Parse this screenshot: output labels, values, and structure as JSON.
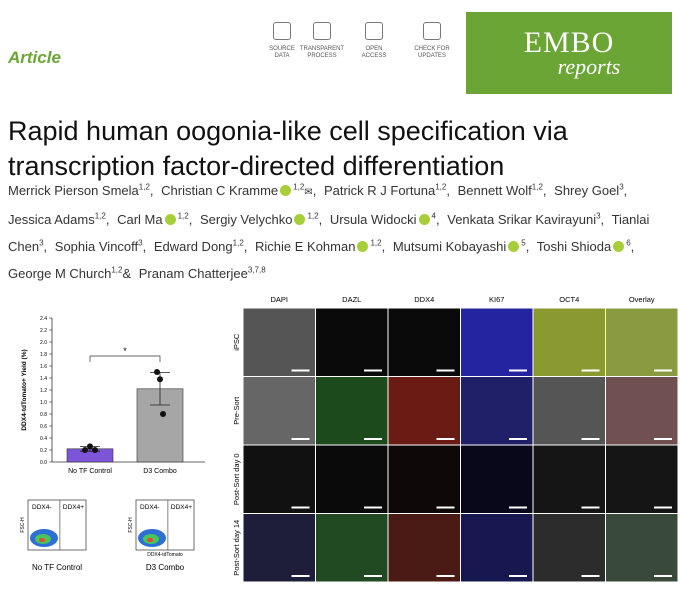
{
  "header": {
    "article_label": "Article",
    "badges": [
      [
        "SOURCE",
        "DATA"
      ],
      [
        "TRANSPARENT",
        "PROCESS"
      ],
      [
        "OPEN",
        "ACCESS"
      ],
      [
        "CHECK FOR",
        "UPDATES"
      ]
    ],
    "logo": {
      "main": "EMBO",
      "sub": "reports"
    }
  },
  "title": "Rapid human oogonia-like cell specification via transcription factor-directed differentiation",
  "authors": [
    {
      "name": "Merrick Pierson Smela",
      "sup": "1,2",
      "after": ","
    },
    {
      "name": "Christian C Kramme",
      "orcid": true,
      "sup": "1,2",
      "corresponding": true,
      "after": ","
    },
    {
      "name": "Patrick R J Fortuna",
      "sup": "1,2",
      "after": ","
    },
    {
      "name": "Bennett Wolf",
      "sup": "1,2",
      "after": ","
    },
    {
      "name": "Shrey Goel",
      "sup": "3",
      "after": ","
    },
    {
      "name": "Jessica Adams",
      "sup": "1,2",
      "after": ","
    },
    {
      "name": "Carl Ma",
      "orcid": true,
      "sup": "1,2",
      "after": ","
    },
    {
      "name": "Sergiy Velychko",
      "orcid": true,
      "sup": "1,2",
      "after": ","
    },
    {
      "name": "Ursula Widocki",
      "orcid": true,
      "sup": "4",
      "after": ","
    },
    {
      "name": "Venkata Srikar Kavirayuni",
      "sup": "3",
      "after": ","
    },
    {
      "name": "Tianlai Chen",
      "sup": "3",
      "after": ","
    },
    {
      "name": "Sophia Vincoff",
      "sup": "3",
      "after": ","
    },
    {
      "name": "Edward Dong",
      "sup": "1,2",
      "after": ","
    },
    {
      "name": "Richie E Kohman",
      "orcid": true,
      "sup": "1,2",
      "after": ","
    },
    {
      "name": "Mutsumi Kobayashi",
      "orcid": true,
      "sup": "5",
      "after": ","
    },
    {
      "name": "Toshi Shioda",
      "orcid": true,
      "sup": "6",
      "after": ","
    },
    {
      "name": "George M Church",
      "sup": "1,2",
      "after": "&"
    },
    {
      "name": "Pranam Chatterjee",
      "sup": "3,7,8"
    }
  ],
  "chart_data": {
    "type": "bar",
    "y_label": "DDX4-tdTomato+ Yield (%)",
    "categories": [
      "No TF Control",
      "D3 Combo"
    ],
    "values": [
      0.22,
      1.22
    ],
    "errors": [
      0.04,
      0.27
    ],
    "colors": [
      "#7d55d8",
      "#a6a6a6"
    ],
    "points": [
      [
        0.2,
        0.26,
        0.2
      ],
      [
        1.5,
        1.38,
        0.8
      ]
    ],
    "significance": "*",
    "ylim": [
      0,
      2.4
    ],
    "yticks": [
      {
        "value": 0,
        "label": "0.0"
      },
      0.2,
      0.4,
      0.6,
      0.8,
      {
        "value": 1,
        "label": "1.0"
      },
      1.2,
      1.4,
      1.6,
      1.8,
      {
        "value": 2,
        "label": "2.0"
      },
      2.2,
      2.4
    ]
  },
  "flow": {
    "plots": [
      {
        "left_gate": "DDX4-",
        "right_gate": "DDX4+",
        "y_label": "FSC-H",
        "caption": "No TF Control"
      },
      {
        "left_gate": "DDX4-",
        "right_gate": "DDX4+",
        "y_label": "FSC-H",
        "x_label": "DDX4-tdTomato",
        "caption": "D3 Combo"
      }
    ]
  },
  "microscopy": {
    "columns": [
      "DAPI",
      "DAZL",
      "DDX4",
      "KI67",
      "OCT4",
      "Overlay"
    ],
    "rows": [
      "iPSC",
      "Pre-Sort",
      "Post-Sort day 0",
      "Post-Sort day 14"
    ]
  }
}
